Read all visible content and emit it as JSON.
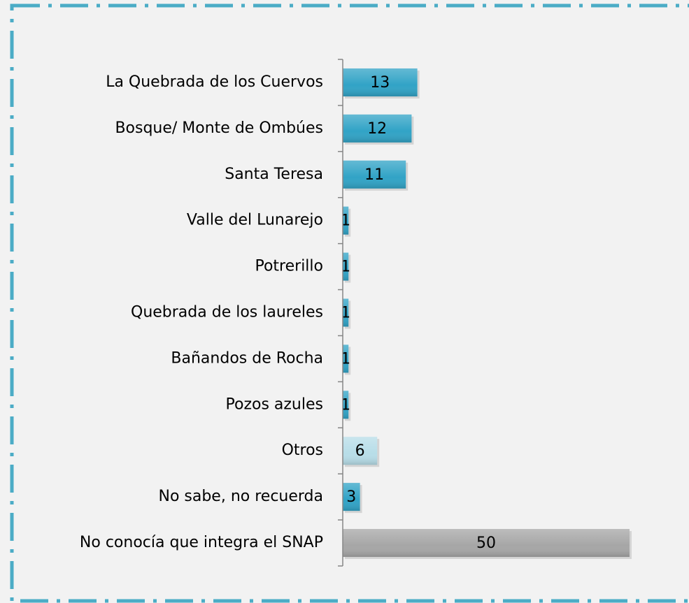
{
  "chart_data": {
    "type": "hbar",
    "categories": [
      "La Quebrada de los Cuervos",
      "Bosque/ Monte de Ombúes",
      "Santa Teresa",
      "Valle del Lunarejo",
      "Potrerillo",
      "Quebrada de los laureles",
      "Bañandos de Rocha",
      "Pozos azules",
      "Otros",
      "No sabe, no recuerda",
      "No conocía que integra el SNAP"
    ],
    "values": [
      13,
      12,
      11,
      1,
      1,
      1,
      1,
      1,
      6,
      3,
      50
    ],
    "colors": [
      "#31a3c6",
      "#31a3c6",
      "#31a3c6",
      "#31a3c6",
      "#31a3c6",
      "#31a3c6",
      "#31a3c6",
      "#31a3c6",
      "#b7dde8",
      "#31a3c6",
      "#a6a6a6"
    ],
    "xlim": [
      0,
      50
    ]
  }
}
